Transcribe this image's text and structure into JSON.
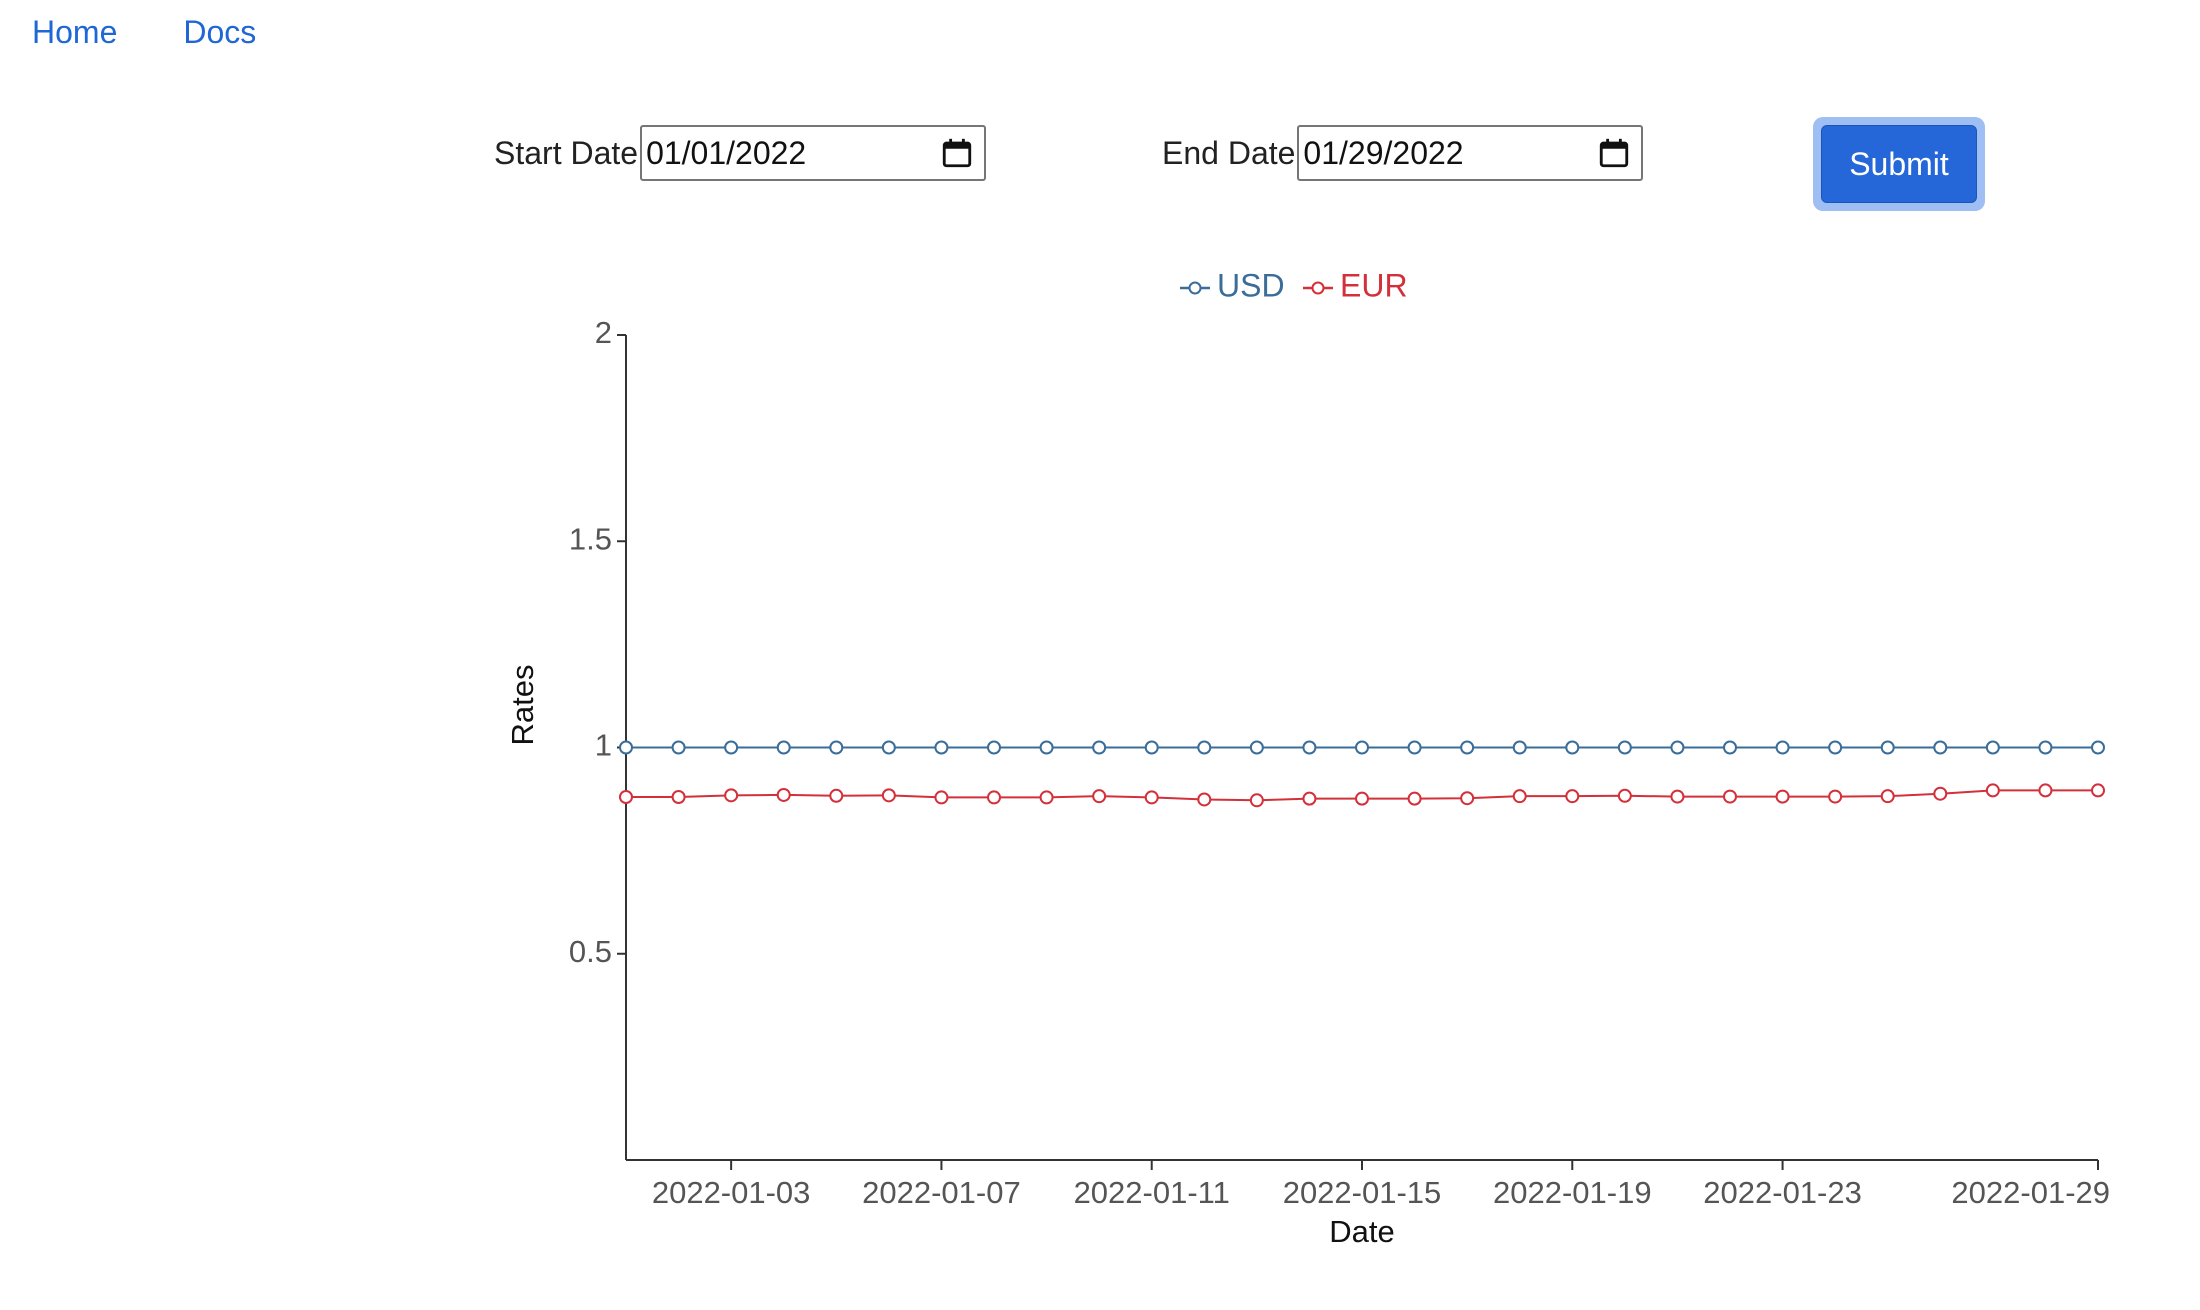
{
  "nav": {
    "home": "Home",
    "docs": "Docs"
  },
  "form": {
    "start_label": "Start Date",
    "start_value": "01/01/2022",
    "end_label": "End Date",
    "end_value": "01/29/2022",
    "submit_label": "Submit"
  },
  "icons": {
    "calendar": "calendar-icon"
  },
  "colors": {
    "usd": "#3a6d99",
    "eur": "#d3303a",
    "accent": "#2567d8"
  },
  "chart_data": {
    "type": "line",
    "x": [
      "2022-01-01",
      "2022-01-02",
      "2022-01-03",
      "2022-01-04",
      "2022-01-05",
      "2022-01-06",
      "2022-01-07",
      "2022-01-08",
      "2022-01-09",
      "2022-01-10",
      "2022-01-11",
      "2022-01-12",
      "2022-01-13",
      "2022-01-14",
      "2022-01-15",
      "2022-01-16",
      "2022-01-17",
      "2022-01-18",
      "2022-01-19",
      "2022-01-20",
      "2022-01-21",
      "2022-01-22",
      "2022-01-23",
      "2022-01-24",
      "2022-01-25",
      "2022-01-26",
      "2022-01-27",
      "2022-01-28",
      "2022-01-29"
    ],
    "series": [
      {
        "name": "USD",
        "values": [
          1,
          1,
          1,
          1,
          1,
          1,
          1,
          1,
          1,
          1,
          1,
          1,
          1,
          1,
          1,
          1,
          1,
          1,
          1,
          1,
          1,
          1,
          1,
          1,
          1,
          1,
          1,
          1,
          1
        ]
      },
      {
        "name": "EUR",
        "values": [
          0.88,
          0.88,
          0.884,
          0.885,
          0.883,
          0.884,
          0.879,
          0.879,
          0.879,
          0.882,
          0.879,
          0.874,
          0.872,
          0.876,
          0.876,
          0.876,
          0.877,
          0.882,
          0.882,
          0.883,
          0.881,
          0.881,
          0.881,
          0.881,
          0.882,
          0.888,
          0.896,
          0.896,
          0.896
        ]
      }
    ],
    "xlabel": "Date",
    "ylabel": "Rates",
    "ylim": [
      0,
      2
    ],
    "yticks": [
      "0.5",
      "1",
      "1.5",
      "2"
    ],
    "xticks": [
      "2022-01-03",
      "2022-01-07",
      "2022-01-11",
      "2022-01-15",
      "2022-01-19",
      "2022-01-23",
      "2022-01-29"
    ],
    "legend_placement": "top-center",
    "grid": false
  }
}
